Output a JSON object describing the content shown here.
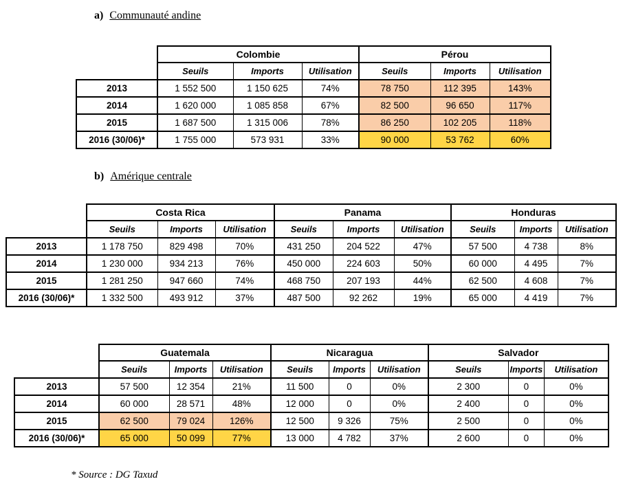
{
  "sections": [
    {
      "prefix": "a)",
      "title": "Communauté andine"
    },
    {
      "prefix": "b)",
      "title": "Amérique centrale"
    }
  ],
  "footer": {
    "text": "* Source : DG Taxud"
  },
  "colors": {
    "peach": "#FACDA9",
    "yellow": "#FFD546"
  },
  "column_headers": [
    "Seuils",
    "Imports",
    "Utilisation"
  ],
  "row_labels": [
    "2013",
    "2014",
    "2015",
    "2016 (30/06)*"
  ],
  "tables": [
    {
      "id": "communaute-andine",
      "countries": [
        "Colombie",
        "Pérou"
      ],
      "rows": [
        {
          "label": "2013",
          "cells": [
            "1 552 500",
            "1 150 625",
            "74%",
            {
              "text": "78 750",
              "bg": "peach"
            },
            {
              "text": "112 395",
              "bg": "peach"
            },
            {
              "text": "143%",
              "bg": "peach"
            }
          ]
        },
        {
          "label": "2014",
          "cells": [
            "1 620 000",
            "1 085 858",
            "67%",
            {
              "text": "82 500",
              "bg": "peach"
            },
            {
              "text": "96 650",
              "bg": "peach"
            },
            {
              "text": "117%",
              "bg": "peach"
            }
          ]
        },
        {
          "label": "2015",
          "cells": [
            "1 687 500",
            "1 315 006",
            "78%",
            {
              "text": "86 250",
              "bg": "peach"
            },
            {
              "text": "102 205",
              "bg": "peach"
            },
            {
              "text": "118%",
              "bg": "peach"
            }
          ]
        },
        {
          "label": "2016 (30/06)*",
          "cells": [
            "1 755 000",
            "573 931",
            "33%",
            {
              "text": "90 000",
              "bg": "yellow"
            },
            {
              "text": "53 762",
              "bg": "yellow"
            },
            {
              "text": "60%",
              "bg": "yellow"
            }
          ]
        }
      ]
    },
    {
      "id": "amerique-centrale-1",
      "countries": [
        "Costa Rica",
        "Panama",
        "Honduras"
      ],
      "rows": [
        {
          "label": "2013",
          "cells": [
            "1 178 750",
            "829 498",
            "70%",
            "431 250",
            "204 522",
            "47%",
            "57 500",
            "4 738",
            "8%"
          ]
        },
        {
          "label": "2014",
          "cells": [
            "1 230 000",
            "934 213",
            "76%",
            "450 000",
            "224 603",
            "50%",
            "60 000",
            "4 495",
            "7%"
          ]
        },
        {
          "label": "2015",
          "cells": [
            "1 281 250",
            "947 660",
            "74%",
            "468 750",
            "207 193",
            "44%",
            "62 500",
            "4 608",
            "7%"
          ]
        },
        {
          "label": "2016 (30/06)*",
          "cells": [
            "1 332 500",
            "493 912",
            "37%",
            "487 500",
            "92 262",
            "19%",
            "65 000",
            "4 419",
            "7%"
          ]
        }
      ]
    },
    {
      "id": "amerique-centrale-2",
      "countries": [
        "Guatemala",
        "Nicaragua",
        "Salvador"
      ],
      "rows": [
        {
          "label": "2013",
          "cells": [
            "57 500",
            "12 354",
            "21%",
            "11 500",
            "0",
            "0%",
            "2 300",
            "0",
            "0%"
          ]
        },
        {
          "label": "2014",
          "cells": [
            "60 000",
            "28 571",
            "48%",
            "12 000",
            "0",
            "0%",
            "2 400",
            "0",
            "0%"
          ]
        },
        {
          "label": "2015",
          "cells": [
            {
              "text": "62 500",
              "bg": "peach"
            },
            {
              "text": "79 024",
              "bg": "peach"
            },
            {
              "text": "126%",
              "bg": "peach"
            },
            "12 500",
            "9 326",
            "75%",
            "2 500",
            "0",
            "0%"
          ]
        },
        {
          "label": "2016 (30/06)*",
          "cells": [
            {
              "text": "65 000",
              "bg": "yellow"
            },
            {
              "text": "50 099",
              "bg": "yellow"
            },
            {
              "text": "77%",
              "bg": "yellow"
            },
            "13 000",
            "4 782",
            "37%",
            "2 600",
            "0",
            "0%"
          ]
        }
      ]
    }
  ]
}
